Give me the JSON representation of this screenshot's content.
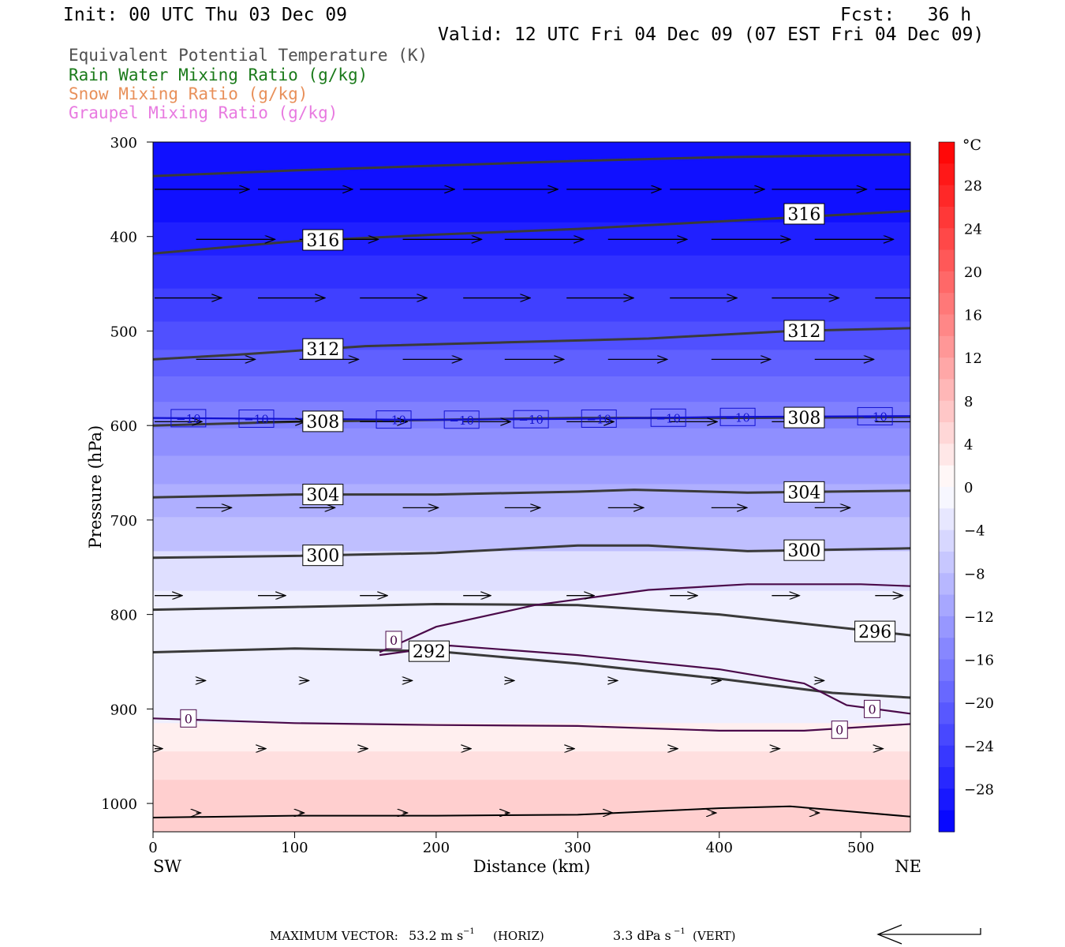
{
  "header": {
    "init": "Init: 00 UTC Thu 03 Dec 09",
    "fcst": "Fcst:   36 h",
    "valid": "Valid: 12 UTC Fri 04 Dec 09 (07 EST Fri 04 Dec 09)"
  },
  "legend": [
    {
      "label": "Equivalent Potential Temperature (K)",
      "color": "#505050"
    },
    {
      "label": "Rain Water Mixing Ratio (g/kg)",
      "color": "#1a7a1a"
    },
    {
      "label": "Snow Mixing Ratio (g/kg)",
      "color": "#e8905a"
    },
    {
      "label": "Graupel Mixing Ratio (g/kg)",
      "color": "#e87ae0"
    }
  ],
  "chart_data": {
    "type": "cross-section",
    "xlabel": "Distance (km)",
    "ylabel": "Pressure (hPa)",
    "xlim": [
      0,
      535
    ],
    "ylim": [
      1030,
      300
    ],
    "x_ticks": [
      0,
      100,
      200,
      300,
      400,
      500
    ],
    "x_tick_labels": [
      "0",
      "100",
      "200",
      "300",
      "400",
      "500"
    ],
    "y_ticks": [
      300,
      400,
      500,
      600,
      700,
      800,
      900,
      1000
    ],
    "y_tick_labels": [
      "300",
      "400",
      "500",
      "600",
      "700",
      "800",
      "900",
      "1000"
    ],
    "left_end_label": "SW",
    "right_end_label": "NE",
    "temperature_fill": [
      {
        "top": 300,
        "bottom": 385,
        "temp": -30
      },
      {
        "top": 385,
        "bottom": 420,
        "temp": -28
      },
      {
        "top": 420,
        "bottom": 455,
        "temp": -26
      },
      {
        "top": 455,
        "bottom": 490,
        "temp": -24
      },
      {
        "top": 490,
        "bottom": 520,
        "temp": -22
      },
      {
        "top": 520,
        "bottom": 548,
        "temp": -20
      },
      {
        "top": 548,
        "bottom": 575,
        "temp": -18
      },
      {
        "top": 575,
        "bottom": 603,
        "temp": -16
      },
      {
        "top": 603,
        "bottom": 632,
        "temp": -14
      },
      {
        "top": 632,
        "bottom": 662,
        "temp": -12
      },
      {
        "top": 662,
        "bottom": 697,
        "temp": -10
      },
      {
        "top": 697,
        "bottom": 733,
        "temp": -8
      },
      {
        "top": 733,
        "bottom": 775,
        "temp": -4
      },
      {
        "top": 775,
        "bottom": 915,
        "temp": -2
      },
      {
        "top": 915,
        "bottom": 945,
        "temp": 2
      },
      {
        "top": 945,
        "bottom": 975,
        "temp": 4
      },
      {
        "top": 975,
        "bottom": 1030,
        "temp": 6
      }
    ],
    "theta_e_contours": [
      {
        "label": "316",
        "points": [
          [
            0,
            336
          ],
          [
            100,
            330
          ],
          [
            200,
            325
          ],
          [
            300,
            320
          ],
          [
            400,
            316
          ],
          [
            535,
            313
          ]
        ]
      },
      {
        "label": "316",
        "points": [
          [
            0,
            418
          ],
          [
            100,
            405
          ],
          [
            200,
            398
          ],
          [
            300,
            392
          ],
          [
            400,
            384
          ],
          [
            535,
            373
          ]
        ]
      },
      {
        "label": "312",
        "points": [
          [
            0,
            530
          ],
          [
            60,
            525
          ],
          [
            150,
            516
          ],
          [
            250,
            512
          ],
          [
            350,
            508
          ],
          [
            450,
            500
          ],
          [
            535,
            497
          ]
        ]
      },
      {
        "label": "308",
        "points": [
          [
            0,
            600
          ],
          [
            100,
            596
          ],
          [
            200,
            594
          ],
          [
            300,
            592
          ],
          [
            400,
            592
          ],
          [
            535,
            591
          ]
        ]
      },
      {
        "label": "304",
        "points": [
          [
            0,
            676
          ],
          [
            100,
            673
          ],
          [
            200,
            673
          ],
          [
            300,
            670
          ],
          [
            340,
            668
          ],
          [
            420,
            671
          ],
          [
            535,
            669
          ]
        ]
      },
      {
        "label": "300",
        "points": [
          [
            0,
            740
          ],
          [
            100,
            738
          ],
          [
            200,
            735
          ],
          [
            300,
            727
          ],
          [
            350,
            727
          ],
          [
            420,
            733
          ],
          [
            535,
            730
          ]
        ]
      },
      {
        "label": "296",
        "points": [
          [
            0,
            795
          ],
          [
            100,
            792
          ],
          [
            200,
            789
          ],
          [
            300,
            790
          ],
          [
            400,
            800
          ],
          [
            535,
            822
          ]
        ]
      },
      {
        "label": "292",
        "points": [
          [
            0,
            840
          ],
          [
            100,
            836
          ],
          [
            200,
            839
          ],
          [
            300,
            852
          ],
          [
            400,
            868
          ],
          [
            480,
            883
          ],
          [
            535,
            888
          ]
        ]
      }
    ],
    "freezing_contours": [
      {
        "label": "0",
        "points": [
          [
            0,
            910
          ],
          [
            100,
            915
          ],
          [
            200,
            917
          ],
          [
            300,
            918
          ],
          [
            400,
            923
          ],
          [
            460,
            923
          ],
          [
            535,
            916
          ]
        ]
      },
      {
        "label": "0",
        "points": [
          [
            160,
            840
          ],
          [
            200,
            813
          ],
          [
            270,
            790
          ],
          [
            350,
            774
          ],
          [
            420,
            768
          ],
          [
            500,
            768
          ],
          [
            535,
            770
          ]
        ]
      },
      {
        "label": "0",
        "points": [
          [
            160,
            843
          ],
          [
            210,
            833
          ],
          [
            300,
            843
          ],
          [
            400,
            858
          ],
          [
            460,
            873
          ],
          [
            490,
            896
          ],
          [
            535,
            905
          ]
        ]
      }
    ],
    "minus10_line": {
      "label": "−10",
      "points": [
        [
          0,
          592
        ],
        [
          100,
          593
        ],
        [
          200,
          594
        ],
        [
          300,
          593
        ],
        [
          400,
          591
        ],
        [
          535,
          590
        ]
      ]
    },
    "ground": {
      "points": [
        [
          0,
          1015
        ],
        [
          100,
          1013
        ],
        [
          200,
          1013
        ],
        [
          300,
          1012
        ],
        [
          400,
          1005
        ],
        [
          450,
          1003
        ],
        [
          535,
          1014
        ]
      ]
    },
    "wind_rows": [
      {
        "p": 350,
        "len": 120
      },
      {
        "p": 403,
        "len": 100
      },
      {
        "p": 465,
        "len": 85
      },
      {
        "p": 530,
        "len": 75
      },
      {
        "p": 596,
        "len": 60
      },
      {
        "p": 687,
        "len": 45
      },
      {
        "p": 780,
        "len": 35
      },
      {
        "p": 870,
        "len": 12
      },
      {
        "p": 942,
        "len": 10
      },
      {
        "p": 1010,
        "len": 6
      }
    ],
    "colorbar": {
      "unit": "°C",
      "min": -32,
      "max": 32,
      "tick_values": [
        28,
        24,
        20,
        16,
        12,
        8,
        4,
        0,
        -4,
        -8,
        -12,
        -16,
        -20,
        -24,
        -28
      ],
      "tick_labels": [
        "28",
        "24",
        "20",
        "16",
        "12",
        "8",
        "4",
        "0",
        "−4",
        "−8",
        "−12",
        "−16",
        "−20",
        "−24",
        "−28"
      ]
    }
  },
  "footer": {
    "max_vector_label": "MAXIMUM VECTOR:",
    "horiz_value": "53.2 m s",
    "horiz_exp": "−1",
    "horiz_unit": "(HORIZ)",
    "vert_value": "3.3 dPa s",
    "vert_exp": "−1",
    "vert_unit": "(VERT)"
  }
}
